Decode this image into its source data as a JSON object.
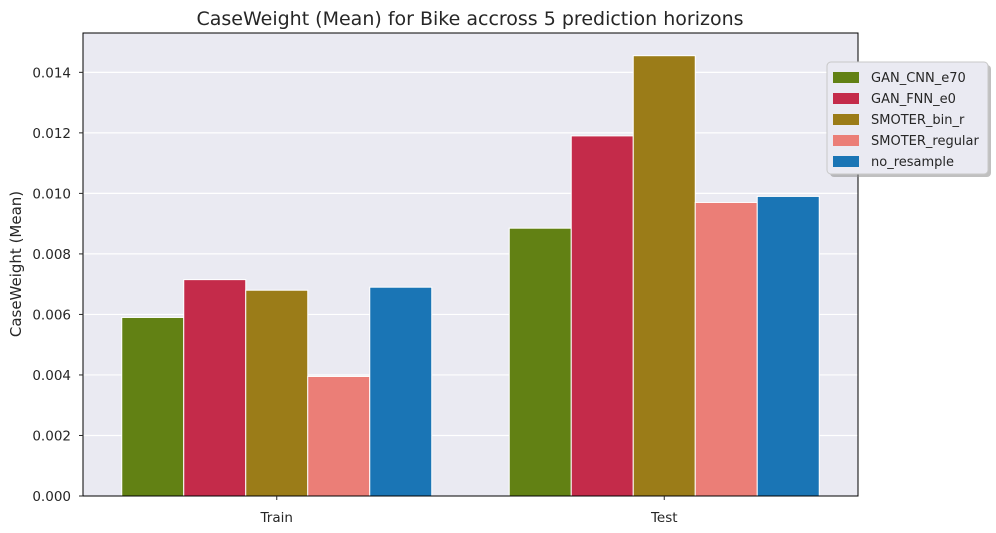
{
  "chart_data": {
    "type": "bar",
    "title": "CaseWeight (Mean) for Bike accross 5 prediction horizons",
    "xlabel": "",
    "ylabel": "CaseWeight (Mean)",
    "categories": [
      "Train",
      "Test"
    ],
    "ylim": [
      0,
      0.0153
    ],
    "yticks": [
      "0.000",
      "0.002",
      "0.004",
      "0.006",
      "0.008",
      "0.010",
      "0.012",
      "0.014"
    ],
    "grid": true,
    "legend_position": "upper-right-outside",
    "series": [
      {
        "name": "GAN_CNN_e70",
        "color": "#628114",
        "values": [
          0.0059,
          0.00885
        ]
      },
      {
        "name": "GAN_FNN_e0",
        "color": "#c42b4a",
        "values": [
          0.00715,
          0.0119
        ]
      },
      {
        "name": "SMOTER_bin_r",
        "color": "#9b7c18",
        "values": [
          0.0068,
          0.01455
        ]
      },
      {
        "name": "SMOTER_regular",
        "color": "#eb7e77",
        "values": [
          0.00395,
          0.0097
        ]
      },
      {
        "name": "no_resample",
        "color": "#1a75b5",
        "values": [
          0.0069,
          0.0099
        ]
      }
    ]
  }
}
